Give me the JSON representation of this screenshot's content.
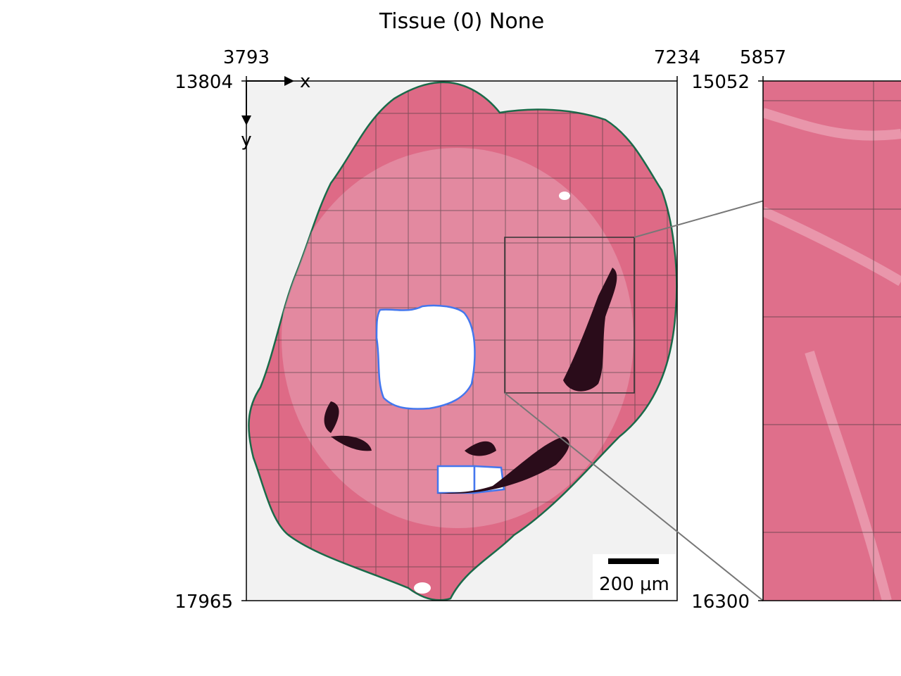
{
  "title": "Tissue (0) None",
  "left_panel": {
    "x_ticks": [
      3793,
      7234
    ],
    "y_ticks": [
      13804,
      17965
    ],
    "axis_labels": [
      "x",
      "y"
    ],
    "scale_bar": "200 μm"
  },
  "right_panel": {
    "x_ticks": [
      5857
    ],
    "y_ticks": [
      15052,
      16300
    ]
  }
}
